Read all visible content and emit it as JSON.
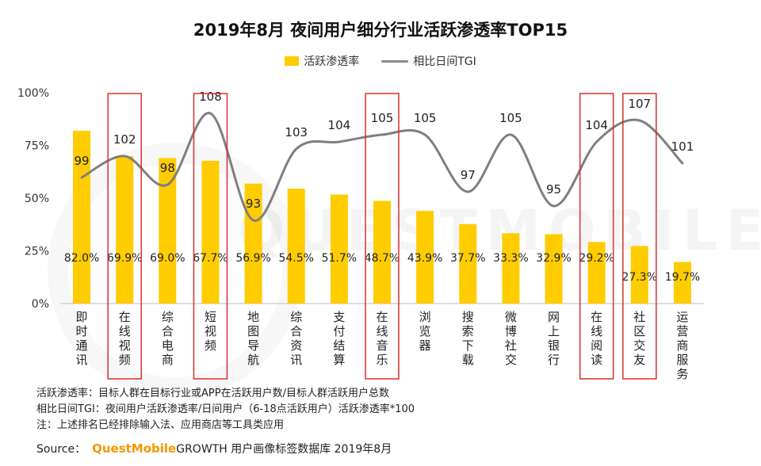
{
  "title": "2019年8月 夜间用户细分行业活跃渗透率TOP15",
  "legend": {
    "bar_label": "活跃渗透率",
    "line_label": "相比日间TGI"
  },
  "watermark": "QUESTMOBILE",
  "colors": {
    "bar": "#FFCC00",
    "line": "#7f7f7f",
    "highlight": "#D9302C",
    "axis": "#bfbfbf"
  },
  "chart_data": {
    "type": "bar",
    "title": "2019年8月 夜间用户细分行业活跃渗透率TOP15",
    "categories": [
      "即时通讯",
      "在线视频",
      "综合电商",
      "短视频",
      "地图导航",
      "综合资讯",
      "支付结算",
      "在线音乐",
      "浏览器",
      "搜索下载",
      "微博社交",
      "网上银行",
      "在线阅读",
      "社区交友",
      "运营商服务"
    ],
    "y_ticks": [
      "0%",
      "25%",
      "50%",
      "75%",
      "100%"
    ],
    "ylim": [
      0,
      100
    ],
    "series": [
      {
        "name": "活跃渗透率",
        "type": "bar",
        "values": [
          82.0,
          69.9,
          69.0,
          67.7,
          56.9,
          54.5,
          51.7,
          48.7,
          43.9,
          37.7,
          33.3,
          32.9,
          29.2,
          27.3,
          19.7
        ],
        "labels": [
          "82.0%",
          "69.9%",
          "69.0%",
          "67.7%",
          "56.9%",
          "54.5%",
          "51.7%",
          "48.7%",
          "43.9%",
          "37.7%",
          "33.3%",
          "32.9%",
          "29.2%",
          "27.3%",
          "19.7%"
        ]
      },
      {
        "name": "相比日间TGI",
        "type": "line",
        "values": [
          99,
          102,
          98,
          108,
          93,
          103,
          104,
          105,
          105,
          97,
          105,
          95,
          104,
          107,
          101
        ]
      }
    ],
    "highlighted": [
      "在线视频",
      "短视频",
      "在线音乐",
      "在线阅读",
      "社区交友"
    ]
  },
  "notes": [
    "活跃渗透率：目标人群在目标行业或APP在活跃用户数/目标人群活跃用户总数",
    "相比日间TGI：夜间用户活跃渗透率/日间用户（6-18点活跃用户）活跃渗透率*100",
    "注：上述排名已经排除输入法、应用商店等工具类应用"
  ],
  "source": {
    "label": "Source：",
    "brand": "QuestMobile",
    "text": "GROWTH 用户画像标签数据库 2019年8月"
  }
}
